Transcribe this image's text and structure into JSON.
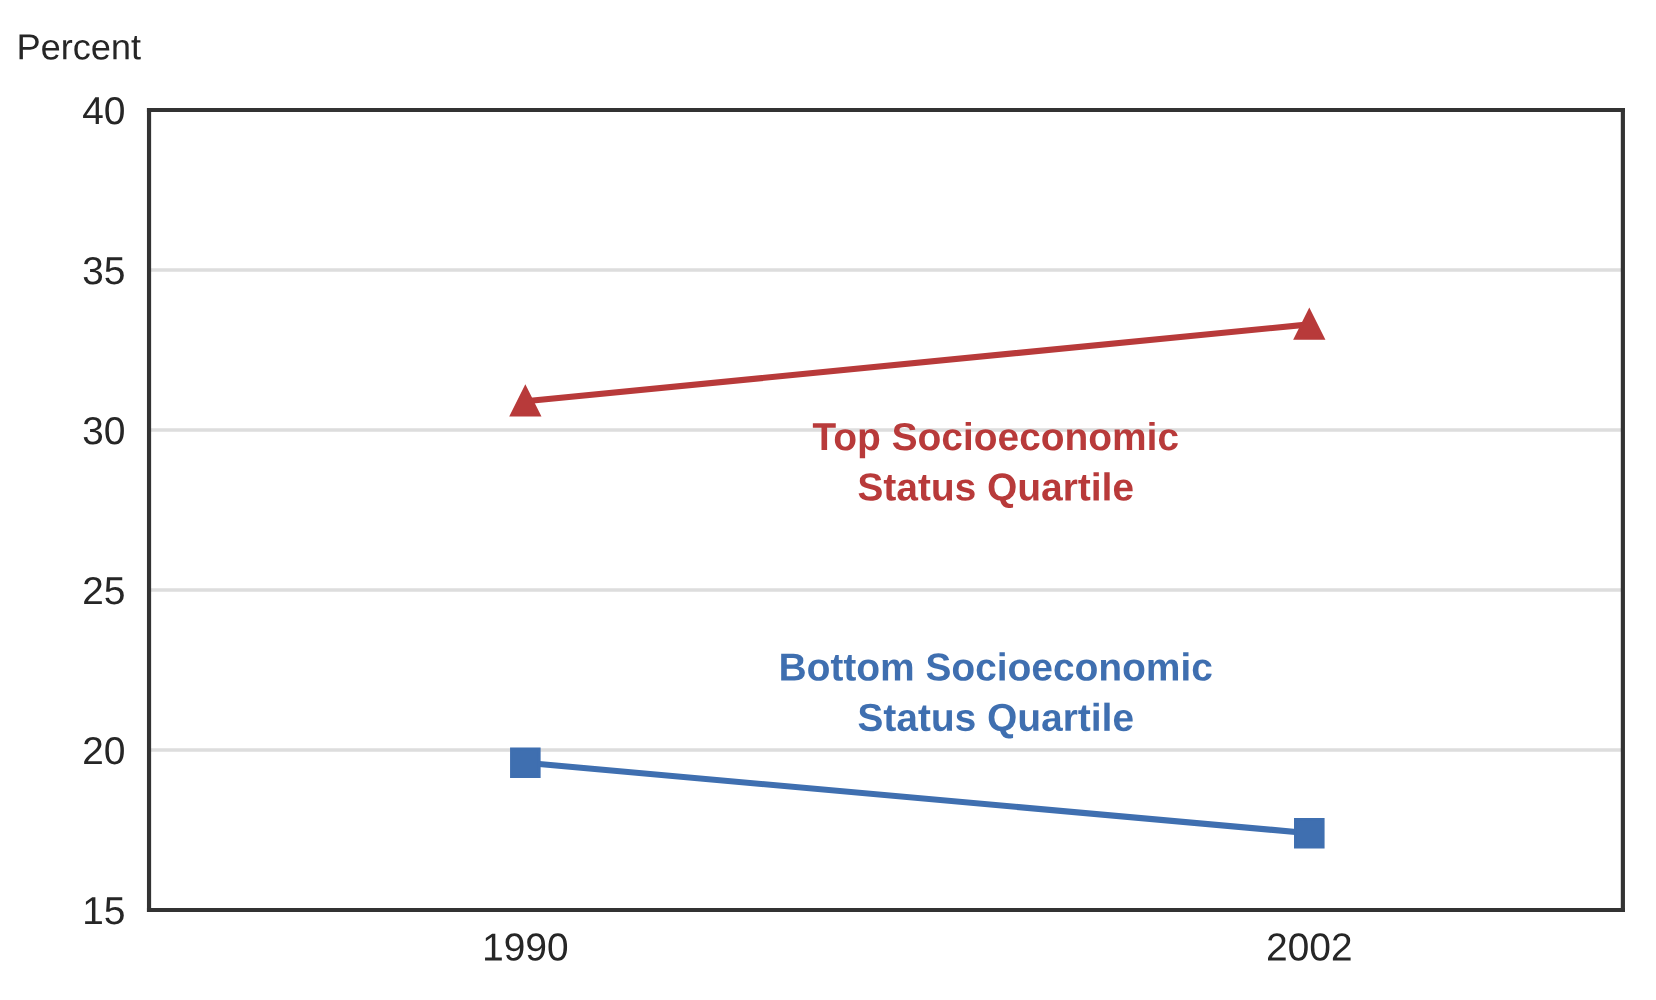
{
  "chart_data": {
    "type": "line",
    "ylabel": "Percent",
    "categories": [
      "1990",
      "2002"
    ],
    "series": [
      {
        "name": "Top Socioeconomic\nStatus Quartile",
        "color": "#b83a3a",
        "values": [
          30.9,
          33.3
        ],
        "marker": "triangle"
      },
      {
        "name": "Bottom Socioeconomic\nStatus Quartile",
        "color": "#3f6fb0",
        "values": [
          19.6,
          17.4
        ],
        "marker": "square"
      }
    ],
    "ylim": [
      15,
      40
    ],
    "yticks": [
      15,
      20,
      25,
      30,
      35,
      40
    ],
    "grid": "y",
    "legend": false
  }
}
